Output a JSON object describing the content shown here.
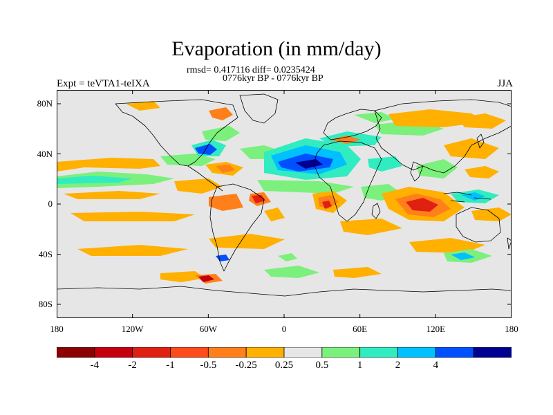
{
  "title": "Evaporation (in mm/day)",
  "stats": "rmsd= 0.417116 diff= 0.0235424",
  "period": "0776kyr BP - 0776kyr BP",
  "expt": "Expt = teVTA1-teIXA",
  "season": "JJA",
  "lat_ticks": [
    {
      "label": "80N",
      "lat": 80
    },
    {
      "label": "40N",
      "lat": 40
    },
    {
      "label": "0",
      "lat": 0
    },
    {
      "label": "40S",
      "lat": -40
    },
    {
      "label": "80S",
      "lat": -80
    }
  ],
  "lon_ticks": [
    {
      "label": "180",
      "lon": -180
    },
    {
      "label": "120W",
      "lon": -120
    },
    {
      "label": "60W",
      "lon": -60
    },
    {
      "label": "0",
      "lon": 0
    },
    {
      "label": "60E",
      "lon": 60
    },
    {
      "label": "120E",
      "lon": 120
    },
    {
      "label": "180",
      "lon": 180
    }
  ],
  "colorbar": {
    "colors": [
      "#8b0000",
      "#c4000d",
      "#e02010",
      "#ff4a1a",
      "#ff7f1a",
      "#ffb000",
      "#e6e6e6",
      "#7cf07c",
      "#30ecc0",
      "#00c0ff",
      "#0050ff",
      "#000090"
    ],
    "labels": [
      "-4",
      "-2",
      "-1",
      "-0.5",
      "-0.25",
      "0.25",
      "0.5",
      "1",
      "2",
      "4"
    ]
  },
  "colors": {
    "background_field": "#e6e6e6",
    "coastline": "#000000"
  }
}
